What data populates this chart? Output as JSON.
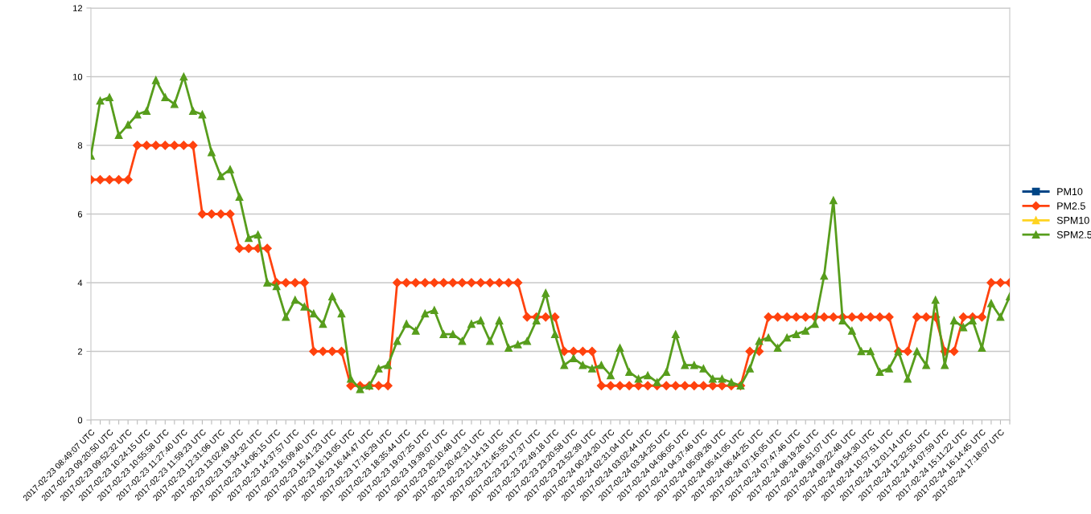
{
  "chart_data": {
    "type": "line",
    "categories": [
      "2017-02-23 08:49:07 UTC",
      null,
      "2017-02-23 09:20:50 UTC",
      null,
      "2017-02-23 09:52:32 UTC",
      null,
      "2017-02-23 10:24:15 UTC",
      null,
      "2017-02-23 10:55:58 UTC",
      null,
      "2017-02-23 11:27:40 UTC",
      null,
      "2017-02-23 11:59:23 UTC",
      null,
      "2017-02-23 12:31:06 UTC",
      null,
      "2017-02-23 13:02:49 UTC",
      null,
      "2017-02-23 13:34:32 UTC",
      null,
      "2017-02-23 14:06:15 UTC",
      null,
      "2017-02-23 14:37:57 UTC",
      null,
      "2017-02-23 15:09:40 UTC",
      null,
      "2017-02-23 15:41:23 UTC",
      null,
      "2017-02-23 16:13:05 UTC",
      null,
      "2017-02-23 16:44:47 UTC",
      null,
      "2017-02-23 17:16:29 UTC",
      null,
      "2017-02-23 18:35:44 UTC",
      null,
      "2017-02-23 19:07:25 UTC",
      null,
      "2017-02-23 19:39:07 UTC",
      null,
      "2017-02-23 20:10:48 UTC",
      null,
      "2017-02-23 20:42:31 UTC",
      null,
      "2017-02-23 21:14:13 UTC",
      null,
      "2017-02-23 21:45:55 UTC",
      null,
      "2017-02-23 22:17:37 UTC",
      null,
      "2017-02-23 22:49:18 UTC",
      null,
      "2017-02-23 23:20:58 UTC",
      null,
      "2017-02-23 23:52:39 UTC",
      null,
      "2017-02-24 00:24:20 UTC",
      null,
      "2017-02-24 02:31:04 UTC",
      null,
      "2017-02-24 03:02:44 UTC",
      null,
      "2017-02-24 03:34:25 UTC",
      null,
      "2017-02-24 04:06:05 UTC",
      null,
      "2017-02-24 04:37:46 UTC",
      null,
      "2017-02-24 05:09:26 UTC",
      null,
      "2017-02-24 05:41:05 UTC",
      null,
      "2017-02-24 06:44:25 UTC",
      null,
      "2017-02-24 07:16:05 UTC",
      null,
      "2017-02-24 07:47:46 UTC",
      null,
      "2017-02-24 08:19:26 UTC",
      null,
      "2017-02-24 08:51:07 UTC",
      null,
      "2017-02-24 09:22:48 UTC",
      null,
      "2017-02-24 09:54:30 UTC",
      null,
      "2017-02-24 10:57:51 UTC",
      null,
      "2017-02-24 12:01:14 UTC",
      null,
      "2017-02-24 12:32:55 UTC",
      null,
      "2017-02-24 14:07:59 UTC",
      null,
      "2017-02-24 15:11:22 UTC",
      null,
      "2017-02-24 16:14:45 UTC",
      null,
      "2017-02-24 17:18:07 UTC",
      null
    ],
    "series": [
      {
        "name": "PM10",
        "color": "#004586",
        "marker": "square",
        "values": [
          null,
          null,
          null,
          null,
          null,
          null,
          null,
          null,
          null,
          null,
          null,
          null,
          null,
          null,
          null,
          null,
          null,
          null,
          null,
          null,
          null,
          null,
          null,
          null,
          null,
          null,
          null,
          null,
          null,
          null,
          null,
          null,
          null,
          null,
          null,
          null,
          null,
          null,
          null,
          null,
          null,
          null,
          null,
          null,
          null,
          null,
          null,
          null,
          null,
          null,
          null,
          null,
          null,
          null,
          null,
          null,
          null,
          null,
          null,
          null,
          null,
          null,
          null,
          null,
          null,
          null,
          null,
          null,
          null,
          null,
          null,
          null,
          null,
          null,
          null,
          null,
          null,
          null,
          null,
          null,
          null,
          null,
          null,
          null,
          null,
          null,
          null,
          null,
          null,
          null,
          null,
          null,
          null,
          null,
          null,
          null,
          null,
          null,
          null,
          null
        ]
      },
      {
        "name": "PM2.5",
        "color": "#ff420e",
        "marker": "diamond",
        "values": [
          7,
          7,
          7,
          7,
          7,
          8,
          8,
          8,
          8,
          8,
          8,
          8,
          6,
          6,
          6,
          6,
          5,
          5,
          5,
          5,
          4,
          4,
          4,
          4,
          2,
          2,
          2,
          2,
          1,
          1,
          1,
          1,
          1,
          4,
          4,
          4,
          4,
          4,
          4,
          4,
          4,
          4,
          4,
          4,
          4,
          4,
          4,
          3,
          3,
          3,
          3,
          2,
          2,
          2,
          2,
          1,
          1,
          1,
          1,
          1,
          1,
          1,
          1,
          1,
          1,
          1,
          1,
          1,
          1,
          1,
          1,
          2,
          2,
          3,
          3,
          3,
          3,
          3,
          3,
          3,
          3,
          3,
          3,
          3,
          3,
          3,
          3,
          2,
          2,
          3,
          3,
          3,
          2,
          2,
          3,
          3,
          3,
          4,
          4,
          4
        ]
      },
      {
        "name": "SPM10",
        "color": "#ffd320",
        "marker": "triangle",
        "values": [
          null,
          null,
          null,
          null,
          null,
          null,
          null,
          null,
          null,
          null,
          null,
          null,
          null,
          null,
          null,
          null,
          null,
          null,
          null,
          null,
          null,
          null,
          null,
          null,
          null,
          null,
          null,
          null,
          null,
          null,
          null,
          null,
          null,
          null,
          null,
          null,
          null,
          null,
          null,
          null,
          null,
          null,
          null,
          null,
          null,
          null,
          null,
          null,
          null,
          null,
          null,
          null,
          null,
          null,
          null,
          null,
          null,
          null,
          null,
          null,
          null,
          null,
          null,
          null,
          null,
          null,
          null,
          null,
          null,
          null,
          null,
          null,
          null,
          null,
          null,
          null,
          null,
          null,
          null,
          null,
          null,
          null,
          null,
          null,
          null,
          null,
          null,
          null,
          null,
          null,
          null,
          null,
          null,
          null,
          null,
          null,
          null,
          null,
          null,
          null
        ]
      },
      {
        "name": "SPM2.5",
        "color": "#579d1c",
        "marker": "triangle",
        "values": [
          7.7,
          9.3,
          9.4,
          8.3,
          8.6,
          8.9,
          9.0,
          9.9,
          9.4,
          9.2,
          10.0,
          9.0,
          8.9,
          7.8,
          7.1,
          7.3,
          6.5,
          5.3,
          5.4,
          4.0,
          3.9,
          3.0,
          3.5,
          3.3,
          3.1,
          2.8,
          3.6,
          3.1,
          1.2,
          0.9,
          1.0,
          1.5,
          1.6,
          2.3,
          2.8,
          2.6,
          3.1,
          3.2,
          2.5,
          2.5,
          2.3,
          2.8,
          2.9,
          2.3,
          2.9,
          2.1,
          2.2,
          2.3,
          2.9,
          3.7,
          2.5,
          1.6,
          1.8,
          1.6,
          1.5,
          1.6,
          1.3,
          2.1,
          1.4,
          1.2,
          1.3,
          1.1,
          1.4,
          2.5,
          1.6,
          1.6,
          1.5,
          1.2,
          1.2,
          1.1,
          1.0,
          1.5,
          2.3,
          2.4,
          2.1,
          2.4,
          2.5,
          2.6,
          2.8,
          4.2,
          6.4,
          2.9,
          2.6,
          2.0,
          2.0,
          1.4,
          1.5,
          2.0,
          1.2,
          2.0,
          1.6,
          3.5,
          1.6,
          2.9,
          2.7,
          2.9,
          2.1,
          3.4,
          3.0,
          3.6
        ]
      }
    ],
    "ylim": [
      0,
      12
    ],
    "yticks": [
      0,
      2,
      4,
      6,
      8,
      10,
      12
    ],
    "grid": "y",
    "legend": "right"
  }
}
